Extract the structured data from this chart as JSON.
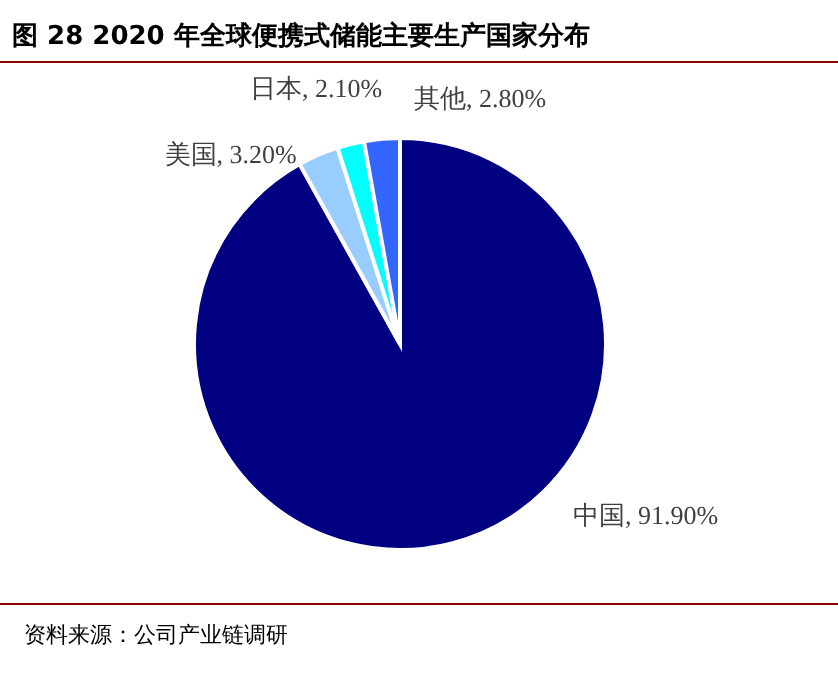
{
  "chart_data": {
    "type": "pie",
    "title": "图 28  2020 年全球便携式储能主要生产国家分布",
    "categories": [
      "中国",
      "美国",
      "日本",
      "其他"
    ],
    "values": [
      91.9,
      3.2,
      2.1,
      2.8
    ],
    "value_labels": [
      "91.90%",
      "3.20%",
      "2.10%",
      "2.80%"
    ],
    "colors": [
      "#000080",
      "#99ccff",
      "#00ffff",
      "#3366ff"
    ],
    "annotations": [
      "资料来源：公司产业链调研"
    ]
  }
}
